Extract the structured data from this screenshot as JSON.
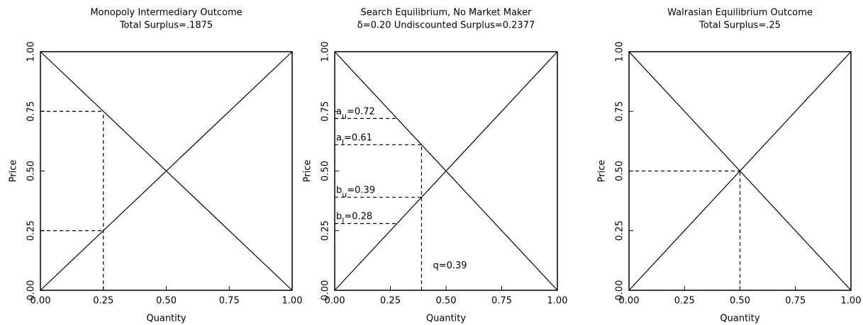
{
  "chart_data": [
    {
      "type": "line",
      "title": "Monopoly Intermediary Outcome",
      "subtitle": "Total Surplus=.1875",
      "xlabel": "Quantity",
      "ylabel": "Price",
      "xlim": [
        0,
        1
      ],
      "ylim": [
        0,
        1
      ],
      "xticks": [
        {
          "value": 0,
          "label": "0.00"
        },
        {
          "value": 0.25,
          "label": "0.25"
        },
        {
          "value": 0.5,
          "label": "0.50"
        },
        {
          "value": 0.75,
          "label": "0.75"
        },
        {
          "value": 1,
          "label": "1.00"
        }
      ],
      "yticks": [
        {
          "value": 0,
          "label": "0.00"
        },
        {
          "value": 0.25,
          "label": "0.25"
        },
        {
          "value": 0.5,
          "label": "0.50"
        },
        {
          "value": 0.75,
          "label": "0.75"
        },
        {
          "value": 1,
          "label": "1.00"
        }
      ],
      "series": [
        {
          "color": "#000000",
          "x": [
            0,
            1
          ],
          "values": [
            1,
            0
          ]
        },
        {
          "color": "#000000",
          "x": [
            0,
            1
          ],
          "values": [
            0,
            1
          ]
        },
        {
          "color": "#000000",
          "dashed": true,
          "x": [
            0,
            0.25
          ],
          "values": [
            0.75,
            0.75
          ]
        },
        {
          "color": "#000000",
          "dashed": true,
          "x": [
            0,
            0.25
          ],
          "values": [
            0.25,
            0.25
          ]
        },
        {
          "color": "#000000",
          "dashed": true,
          "x": [
            0.25,
            0.25
          ],
          "values": [
            0,
            0.75
          ]
        }
      ]
    },
    {
      "type": "line",
      "title": "Search Equilibrium, No Market Maker",
      "subtitle": "δ=0.20 Undiscounted Surplus=0.2377",
      "xlabel": "Quantity",
      "ylabel": "Price",
      "xlim": [
        0,
        1
      ],
      "ylim": [
        0,
        1
      ],
      "xticks": [
        {
          "value": 0,
          "label": "0.00"
        },
        {
          "value": 0.25,
          "label": "0.25"
        },
        {
          "value": 0.5,
          "label": "0.50"
        },
        {
          "value": 0.75,
          "label": "0.75"
        },
        {
          "value": 1,
          "label": "1.00"
        }
      ],
      "yticks": [
        {
          "value": 0,
          "label": "0.00"
        },
        {
          "value": 0.25,
          "label": "0.25"
        },
        {
          "value": 0.5,
          "label": "0.50"
        },
        {
          "value": 0.75,
          "label": "0.75"
        },
        {
          "value": 1,
          "label": "1.00"
        }
      ],
      "series": [
        {
          "color": "#000000",
          "x": [
            0,
            1
          ],
          "values": [
            1,
            0
          ]
        },
        {
          "color": "#000000",
          "x": [
            0,
            1
          ],
          "values": [
            0,
            1
          ]
        },
        {
          "color": "#000000",
          "dashed": true,
          "x": [
            0,
            0.28
          ],
          "values": [
            0.72,
            0.72
          ],
          "label": [
            "a",
            "u",
            "=0.72"
          ]
        },
        {
          "color": "#000000",
          "dashed": true,
          "x": [
            0,
            0.39
          ],
          "values": [
            0.61,
            0.61
          ],
          "label": [
            "a",
            "l",
            "=0.61"
          ]
        },
        {
          "color": "#000000",
          "dashed": true,
          "x": [
            0,
            0.39
          ],
          "values": [
            0.39,
            0.39
          ],
          "label": [
            "b",
            "u",
            "=0.39"
          ]
        },
        {
          "color": "#000000",
          "dashed": true,
          "x": [
            0,
            0.28
          ],
          "values": [
            0.28,
            0.28
          ],
          "label": [
            "b",
            "l",
            "=0.28"
          ]
        },
        {
          "color": "#000000",
          "dashed": true,
          "x": [
            0.39,
            0.39
          ],
          "values": [
            0,
            0.61
          ],
          "label": [
            "q=0.39"
          ]
        }
      ]
    },
    {
      "type": "line",
      "title": "Walrasian Equilibrium Outcome",
      "subtitle": "Total Surplus=.25",
      "xlabel": "Quantity",
      "ylabel": "Price",
      "xlim": [
        0,
        1
      ],
      "ylim": [
        0,
        1
      ],
      "xticks": [
        {
          "value": 0,
          "label": "0.00"
        },
        {
          "value": 0.25,
          "label": "0.25"
        },
        {
          "value": 0.5,
          "label": "0.50"
        },
        {
          "value": 0.75,
          "label": "0.75"
        },
        {
          "value": 1,
          "label": "1.00"
        }
      ],
      "yticks": [
        {
          "value": 0,
          "label": "0.00"
        },
        {
          "value": 0.25,
          "label": "0.25"
        },
        {
          "value": 0.5,
          "label": "0.50"
        },
        {
          "value": 0.75,
          "label": "0.75"
        },
        {
          "value": 1,
          "label": "1.00"
        }
      ],
      "series": [
        {
          "color": "#000000",
          "x": [
            0,
            1
          ],
          "values": [
            1,
            0
          ]
        },
        {
          "color": "#000000",
          "x": [
            0,
            1
          ],
          "values": [
            0,
            1
          ]
        },
        {
          "color": "#000000",
          "dashed": true,
          "x": [
            0,
            0.5
          ],
          "values": [
            0.5,
            0.5
          ]
        },
        {
          "color": "#000000",
          "dashed": true,
          "x": [
            0.5,
            0.5
          ],
          "values": [
            0,
            0.5
          ]
        }
      ]
    }
  ]
}
